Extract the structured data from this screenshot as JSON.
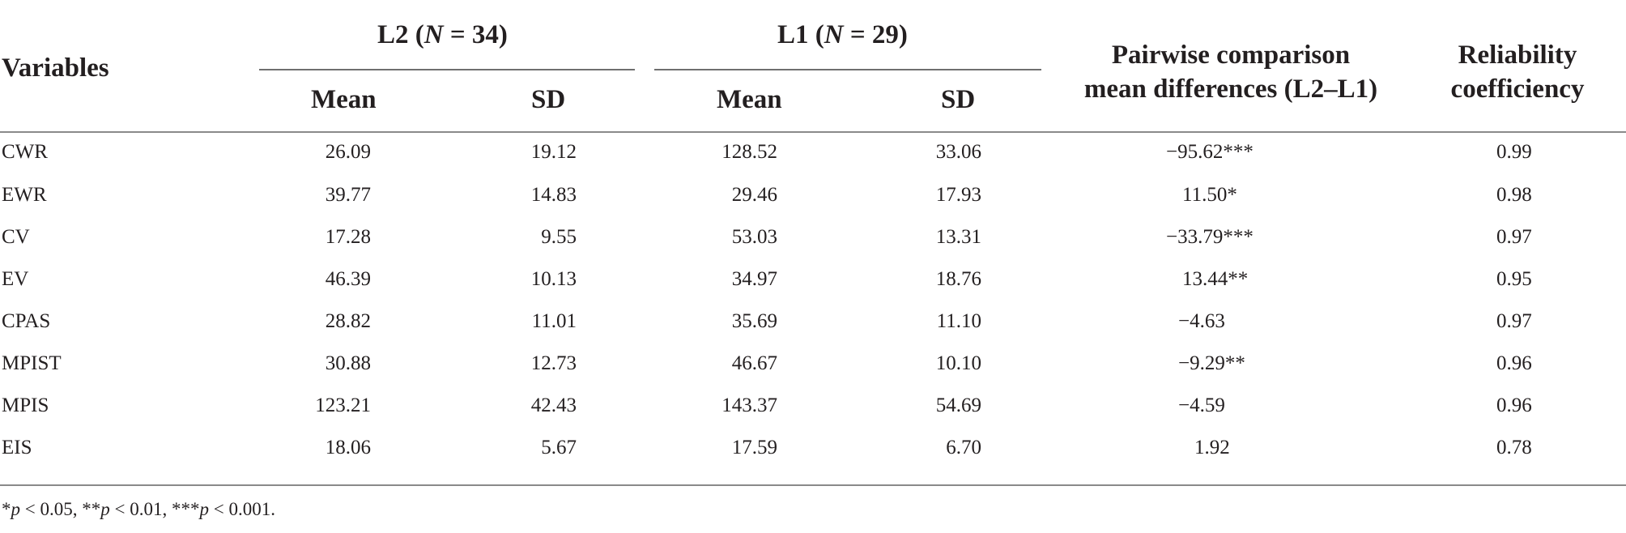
{
  "table": {
    "headers": {
      "variables": "Variables",
      "l2_group": {
        "prefix": "L2 (",
        "n_symbol": "N",
        "suffix": " = 34)"
      },
      "l1_group": {
        "prefix": "L1 (",
        "n_symbol": "N",
        "suffix": " = 29)"
      },
      "mean": "Mean",
      "sd": "SD",
      "pairwise_line1": "Pairwise comparison",
      "pairwise_line2": "mean differences (L2–L1)",
      "reliability_line1": "Reliability",
      "reliability_line2": "coefficiency"
    },
    "rows": [
      {
        "variable": "CWR",
        "l2_mean": "26.09",
        "l2_sd": "19.12",
        "l1_mean": "128.52",
        "l1_sd": "33.06",
        "diff": "−95.62***",
        "reliability": "0.99"
      },
      {
        "variable": "EWR",
        "l2_mean": "39.77",
        "l2_sd": "14.83",
        "l1_mean": "29.46",
        "l1_sd": "17.93",
        "diff": "11.50*",
        "reliability": "0.98"
      },
      {
        "variable": "CV",
        "l2_mean": "17.28",
        "l2_sd": "9.55",
        "l1_mean": "53.03",
        "l1_sd": "13.31",
        "diff": "−33.79***",
        "reliability": "0.97"
      },
      {
        "variable": "EV",
        "l2_mean": "46.39",
        "l2_sd": "10.13",
        "l1_mean": "34.97",
        "l1_sd": "18.76",
        "diff": "13.44**",
        "reliability": "0.95"
      },
      {
        "variable": "CPAS",
        "l2_mean": "28.82",
        "l2_sd": "11.01",
        "l1_mean": "35.69",
        "l1_sd": "11.10",
        "diff": "−4.63",
        "reliability": "0.97"
      },
      {
        "variable": "MPIST",
        "l2_mean": "30.88",
        "l2_sd": "12.73",
        "l1_mean": "46.67",
        "l1_sd": "10.10",
        "diff": "−9.29**",
        "reliability": "0.96"
      },
      {
        "variable": "MPIS",
        "l2_mean": "123.21",
        "l2_sd": "42.43",
        "l1_mean": "143.37",
        "l1_sd": "54.69",
        "diff": "−4.59",
        "reliability": "0.96"
      },
      {
        "variable": "EIS",
        "l2_mean": "18.06",
        "l2_sd": "5.67",
        "l1_mean": "17.59",
        "l1_sd": "6.70",
        "diff": "1.92",
        "reliability": "0.78"
      }
    ]
  },
  "footnote": {
    "sym1": "*",
    "p1": "p",
    "txt1": " < 0.05, ",
    "sym2": "**",
    "p2": "p",
    "txt2": " < 0.01, ",
    "sym3": "***",
    "p3": "p",
    "txt3": " < 0.001."
  }
}
